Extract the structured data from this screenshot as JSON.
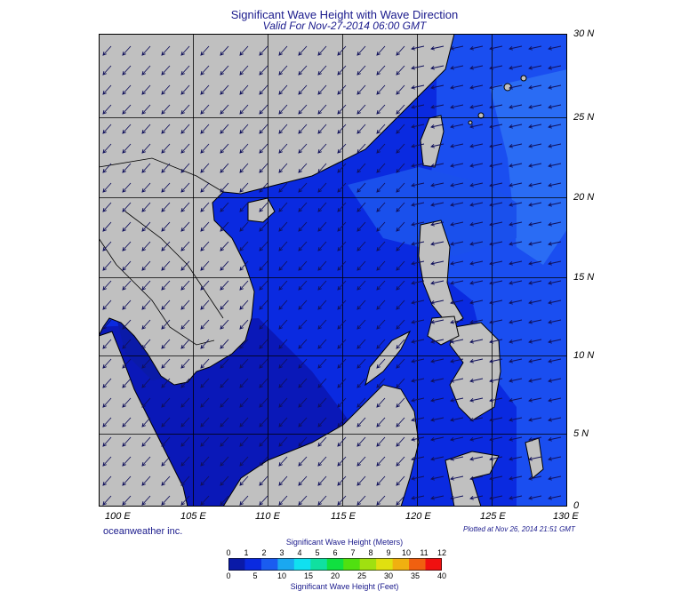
{
  "title": "Significant Wave Height with Wave Direction",
  "subtitle": "Valid For Nov-27-2014 06:00 GMT",
  "credit": "oceanweather inc.",
  "plotted": "Plotted at Nov 26, 2014 21:51 GMT",
  "lon_labels": [
    "100 E",
    "105 E",
    "110 E",
    "115 E",
    "120 E",
    "125 E",
    "130 E"
  ],
  "lat_labels": [
    "30 N",
    "25 N",
    "20 N",
    "15 N",
    "10 N",
    "5 N",
    "0"
  ],
  "colorbar": {
    "title_top": "Significant Wave Height (Meters)",
    "title_bottom": "Significant Wave Height (Feet)",
    "meters": [
      "0",
      "1",
      "2",
      "3",
      "4",
      "5",
      "6",
      "7",
      "8",
      "9",
      "10",
      "11",
      "12"
    ],
    "feet": [
      "0",
      "5",
      "10",
      "15",
      "20",
      "25",
      "30",
      "35",
      "40"
    ],
    "colors": [
      "#0a1aa8",
      "#0a2ae0",
      "#1a5cf0",
      "#1aa8f0",
      "#10e0f0",
      "#10e0a0",
      "#10e040",
      "#50e010",
      "#a0e010",
      "#e0e010",
      "#f0b010",
      "#f06010",
      "#f01010"
    ]
  },
  "legend_colors": {
    "land": "#c0c0c0",
    "sea_low": "#0a22d8",
    "sea_mid": "#1a55f0",
    "sea_high": "#2a7af5"
  }
}
